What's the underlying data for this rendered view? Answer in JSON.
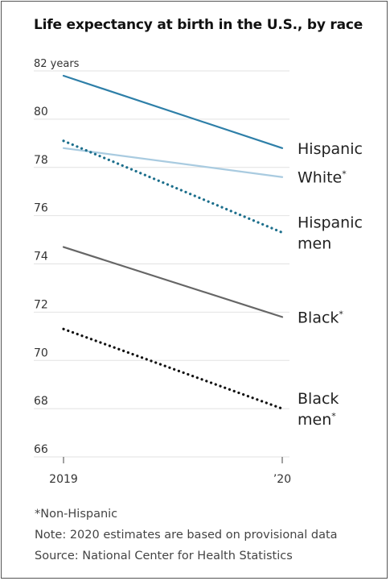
{
  "title": "Life expectancy at birth in the U.S., by race",
  "notes": {
    "footnote": "*Non-Hispanic",
    "note": "Note: 2020 estimates are based on provisional data",
    "source": "Source: National Center for Health Statistics"
  },
  "chart_data": {
    "type": "line",
    "title": "Life expectancy at birth in the U.S., by race",
    "x": [
      "2019",
      "2020"
    ],
    "x_tick_labels": [
      "2019",
      "’20"
    ],
    "y_tick_labels": [
      "82 years",
      "80",
      "78",
      "76",
      "74",
      "72",
      "70",
      "68",
      "66"
    ],
    "ylim": [
      66,
      82
    ],
    "grid": true,
    "series": [
      {
        "name": "Hispanic",
        "label_lines": [
          "Hispanic"
        ],
        "values": [
          81.8,
          78.8
        ],
        "color": "#2e7fa8",
        "style": "solid"
      },
      {
        "name": "White*",
        "label_lines": [
          "White*"
        ],
        "values": [
          78.8,
          77.6
        ],
        "color": "#a9cbe0",
        "style": "solid"
      },
      {
        "name": "Hispanic men",
        "label_lines": [
          "Hispanic",
          "men"
        ],
        "values": [
          79.1,
          75.3
        ],
        "color": "#1d6f8c",
        "style": "dotted"
      },
      {
        "name": "Black*",
        "label_lines": [
          "Black*"
        ],
        "values": [
          74.7,
          71.8
        ],
        "color": "#666666",
        "style": "solid"
      },
      {
        "name": "Black men*",
        "label_lines": [
          "Black",
          "men*"
        ],
        "values": [
          71.3,
          68.0
        ],
        "color": "#111111",
        "style": "dotted"
      }
    ]
  }
}
